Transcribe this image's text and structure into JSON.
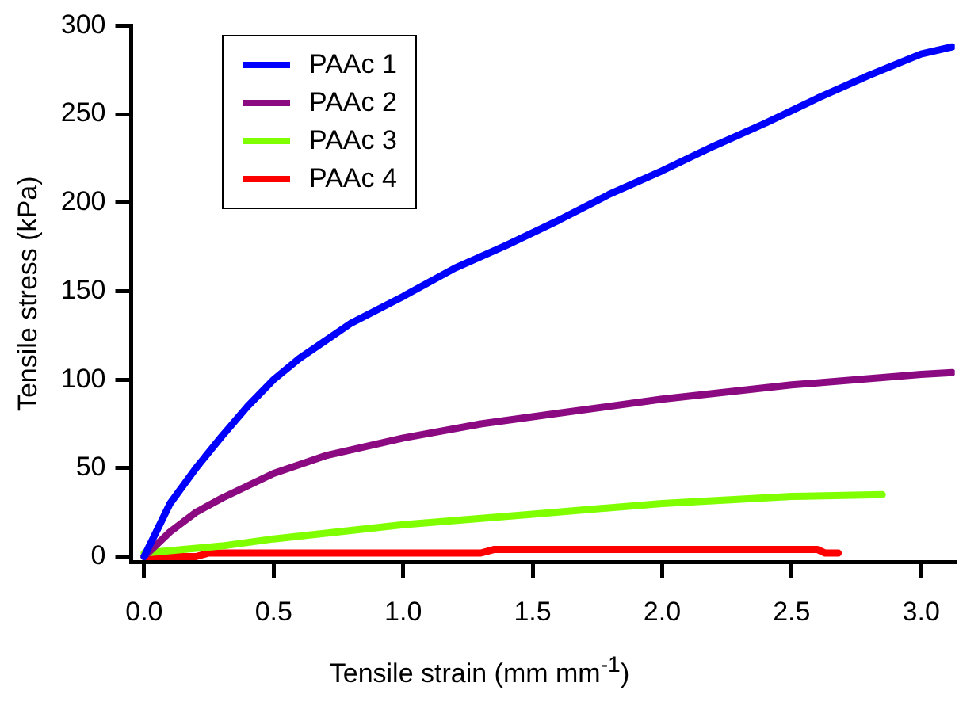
{
  "chart_data": {
    "type": "line",
    "xlabel": "Tensile strain (mm mm$^{-1}$)",
    "ylabel": "Tensile stress (kPa)",
    "xlim": [
      -0.05,
      3.13
    ],
    "ylim": [
      -3,
      300
    ],
    "xticks": [
      {
        "value": 0,
        "label": "0.0"
      },
      {
        "value": 0.5,
        "label": "0.5"
      },
      {
        "value": 1,
        "label": "1.0"
      },
      {
        "value": 1.5,
        "label": "1.5"
      },
      {
        "value": 2,
        "label": "2.0"
      },
      {
        "value": 2.5,
        "label": "2.5"
      },
      {
        "value": 3,
        "label": "3.0"
      }
    ],
    "yticks": [
      0,
      50,
      100,
      150,
      200,
      250,
      300
    ],
    "grid": false,
    "legend": "top left",
    "marker": "none",
    "line_style": "solid",
    "series": [
      {
        "name": "PAAc 1",
        "color": "#0000ff",
        "x": [
          0,
          0.05,
          0.1,
          0.2,
          0.3,
          0.4,
          0.5,
          0.6,
          0.7,
          0.8,
          1.0,
          1.2,
          1.4,
          1.6,
          1.8,
          2.0,
          2.2,
          2.4,
          2.6,
          2.8,
          3.0,
          3.12
        ],
        "values": [
          0,
          15,
          30,
          50,
          68,
          85,
          100,
          112,
          122,
          132,
          147,
          163,
          176,
          190,
          205,
          218,
          232,
          245,
          259,
          272,
          284,
          288
        ]
      },
      {
        "name": "PAAc 2",
        "color": "#8b0a82",
        "x": [
          0,
          0.1,
          0.2,
          0.3,
          0.5,
          0.7,
          1.0,
          1.3,
          1.6,
          2.0,
          2.5,
          3.0,
          3.12
        ],
        "values": [
          0,
          14,
          25,
          33,
          47,
          57,
          67,
          75,
          81,
          89,
          97,
          103,
          104
        ]
      },
      {
        "name": "PAAc 3",
        "color": "#80ff00",
        "x": [
          0,
          0.3,
          0.5,
          1.0,
          1.5,
          2.0,
          2.5,
          2.85
        ],
        "values": [
          2,
          6,
          10,
          18,
          24,
          30,
          34,
          35
        ]
      },
      {
        "name": "PAAc 4",
        "color": "#ff0000",
        "x": [
          0,
          0.2,
          0.25,
          1.3,
          1.35,
          2.6,
          2.63,
          2.68
        ],
        "values": [
          0,
          0,
          2,
          2,
          4,
          4,
          2,
          2
        ]
      }
    ]
  }
}
